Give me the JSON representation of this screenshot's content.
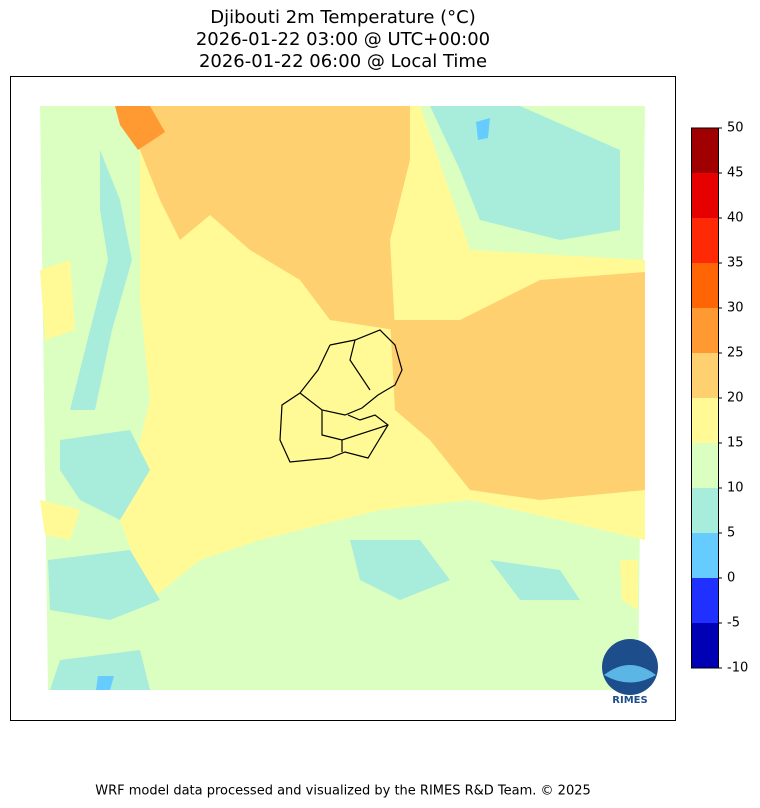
{
  "title_lines": [
    "Djibouti 2m Temperature (°C)",
    "2026-01-22 03:00 @ UTC+00:00",
    "2026-01-22 06:00 @ Local Time"
  ],
  "colorbar": {
    "ticks": [
      -10,
      -5,
      0,
      5,
      10,
      15,
      20,
      25,
      30,
      35,
      40,
      45,
      50
    ],
    "colors": [
      "#0000b4",
      "#2030ff",
      "#66ccff",
      "#a8ecdc",
      "#dbffc0",
      "#fffa96",
      "#ffd070",
      "#ff9a33",
      "#ff6405",
      "#ff2a05",
      "#e60000",
      "#a00000"
    ]
  },
  "logo": "RIMES",
  "footer": "WRF model data processed and visualized by the RIMES R&D Team. © 2025"
}
